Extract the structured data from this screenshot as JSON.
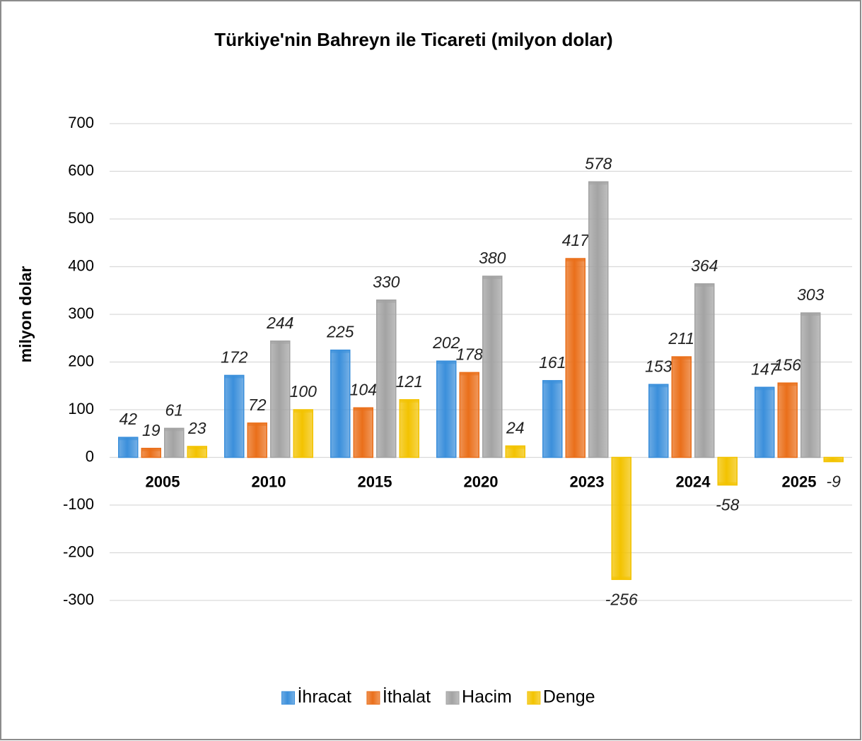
{
  "chart_data": {
    "type": "bar",
    "title": "Türkiye'nin Bahreyn ile Ticareti (milyon dolar)",
    "y_label": "milyon dolar",
    "categories": [
      "2005",
      "2010",
      "2015",
      "2020",
      "2023",
      "2024",
      "2025"
    ],
    "series": [
      {
        "name": "İhracat",
        "color": "#3b8fdb",
        "values": [
          42,
          172,
          225,
          202,
          161,
          153,
          147
        ]
      },
      {
        "name": "İthalat",
        "color": "#ea6f1a",
        "values": [
          19,
          72,
          104,
          178,
          417,
          211,
          156
        ]
      },
      {
        "name": "Hacim",
        "color": "#a3a3a3",
        "values": [
          61,
          244,
          330,
          380,
          578,
          364,
          303
        ]
      },
      {
        "name": "Denge",
        "color": "#f3c300",
        "values": [
          23,
          100,
          121,
          24,
          -256,
          -58,
          -9
        ]
      }
    ],
    "ylim": [
      -300,
      700
    ],
    "yticks": [
      -300,
      -200,
      -100,
      0,
      100,
      200,
      300,
      400,
      500,
      600,
      700
    ],
    "grid": true,
    "legend": "bottom"
  }
}
